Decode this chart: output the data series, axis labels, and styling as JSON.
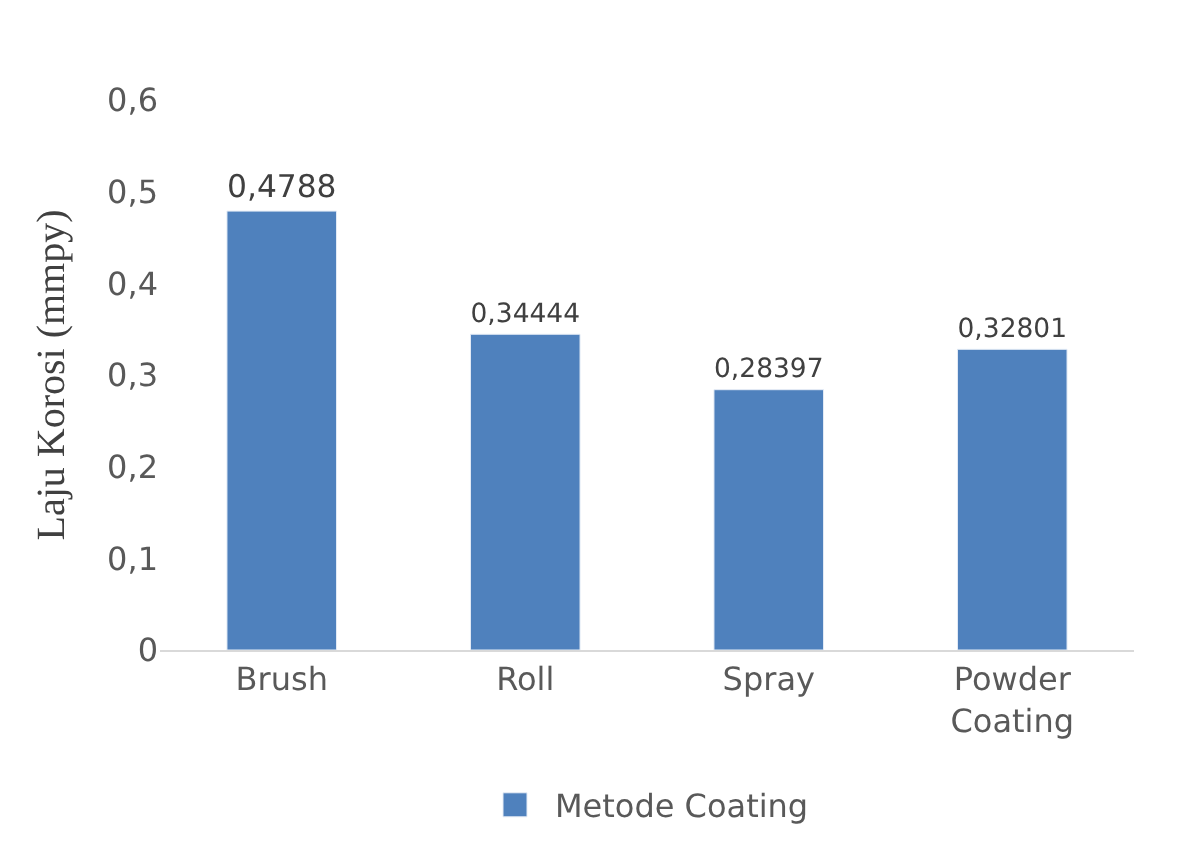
{
  "chart_data": {
    "type": "bar",
    "ylabel": "Laju Korosi (mmpy)",
    "categories": [
      "Brush",
      "Roll",
      "Spray",
      "Powder Coating"
    ],
    "series": [
      {
        "name": "Metode Coating",
        "color": "#4f81bd",
        "values": [
          0.4788,
          0.34444,
          0.28397,
          0.32801
        ],
        "value_labels": [
          "0,4788",
          "0,34444",
          "0,28397",
          "0,32801"
        ]
      }
    ],
    "ylim": [
      0,
      0.6
    ],
    "yticks": [
      0,
      {
        "value": 0.1,
        "label": "0,1"
      },
      {
        "value": 0.2,
        "label": "0,2"
      },
      {
        "value": 0.3,
        "label": "0,3"
      },
      {
        "value": 0.4,
        "label": "0,4"
      },
      {
        "value": 0.5,
        "label": "0,5"
      },
      {
        "value": 0.6,
        "label": "0,6"
      }
    ],
    "grid": false,
    "legend": "bottom"
  }
}
